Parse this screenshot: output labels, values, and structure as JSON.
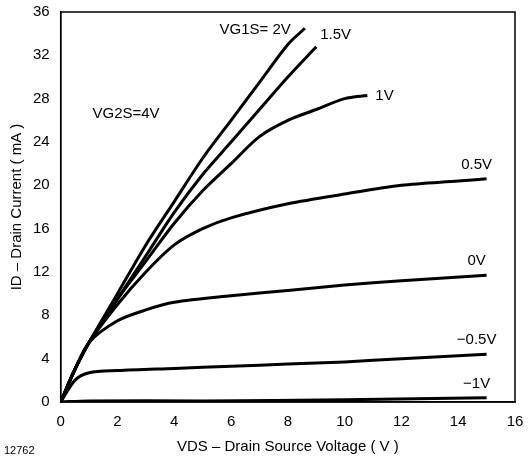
{
  "chart_data": {
    "type": "line",
    "x_label": "VDS – Drain Source Voltage ( V )",
    "y_label": "ID – Drain Current ( mA )",
    "annotations": [
      "VG2S=4V"
    ],
    "footnote": "12762",
    "xlim": [
      0,
      16
    ],
    "xticks": [
      0,
      2,
      4,
      6,
      8,
      10,
      12,
      14,
      16
    ],
    "ylim": [
      0,
      36
    ],
    "yticks": [
      0,
      4,
      8,
      12,
      16,
      20,
      24,
      28,
      32,
      36
    ],
    "grid": false,
    "series": [
      {
        "name": "VG1S= 2V",
        "color": "#000000",
        "x": [
          0,
          0.5,
          1,
          2,
          3,
          4,
          5,
          6,
          7,
          8,
          8.6
        ],
        "values": [
          0,
          3,
          5.5,
          10,
          14.5,
          18.5,
          22.5,
          26,
          29.5,
          33,
          34.5
        ]
      },
      {
        "name": "1.5V",
        "color": "#000000",
        "x": [
          0,
          0.5,
          1,
          2,
          3,
          4,
          5,
          6,
          7,
          8,
          9
        ],
        "values": [
          0,
          3,
          5.5,
          9.5,
          13.5,
          17.5,
          21,
          24,
          27,
          30,
          32.8
        ]
      },
      {
        "name": "1V",
        "color": "#000000",
        "x": [
          0,
          0.5,
          1,
          2,
          3,
          4,
          5,
          6,
          7,
          8,
          9,
          10,
          10.8
        ],
        "values": [
          0,
          3,
          5.5,
          9.5,
          13,
          16.5,
          19.5,
          22,
          24.5,
          26,
          27,
          28,
          28.3
        ]
      },
      {
        "name": "0.5V",
        "color": "#000000",
        "x": [
          0,
          0.5,
          1,
          2,
          3,
          4,
          5,
          6,
          8,
          10,
          12,
          14,
          15
        ],
        "values": [
          0,
          3,
          5.5,
          9,
          12,
          14.5,
          16,
          17,
          18.3,
          19.2,
          20,
          20.4,
          20.6
        ]
      },
      {
        "name": "0V",
        "color": "#000000",
        "x": [
          0,
          0.5,
          1,
          2,
          3,
          4,
          6,
          8,
          10,
          12,
          15
        ],
        "values": [
          0,
          3,
          5.5,
          7.5,
          8.5,
          9.2,
          9.8,
          10.3,
          10.8,
          11.2,
          11.7
        ]
      },
      {
        "name": "−0.5V",
        "color": "#000000",
        "x": [
          0,
          0.5,
          1,
          2,
          4,
          6,
          8,
          10,
          12,
          15
        ],
        "values": [
          0,
          2,
          2.7,
          2.9,
          3.1,
          3.3,
          3.5,
          3.7,
          4,
          4.4
        ]
      },
      {
        "name": "−1V",
        "color": "#000000",
        "x": [
          0,
          1,
          5,
          10,
          15
        ],
        "values": [
          0,
          0.1,
          0.1,
          0.2,
          0.4
        ]
      }
    ]
  }
}
